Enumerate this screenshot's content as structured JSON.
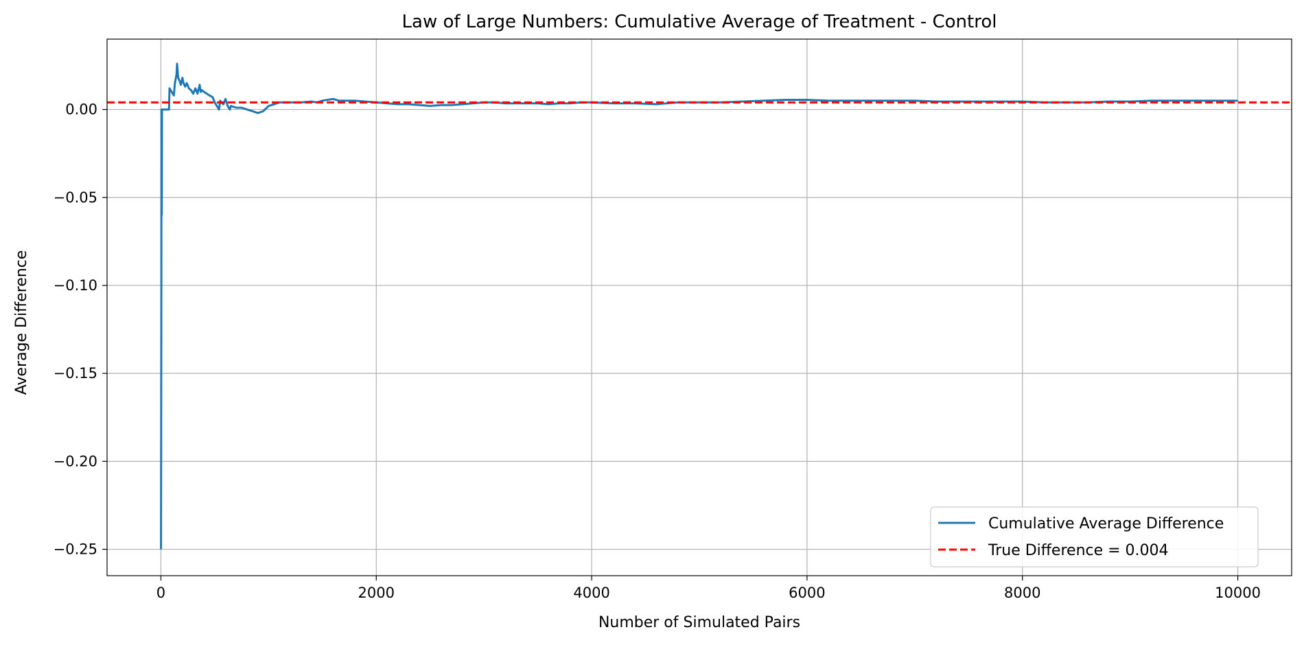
{
  "chart_data": {
    "type": "line",
    "title": "Law of Large Numbers: Cumulative Average of Treatment - Control",
    "xlabel": "Number of Simulated Pairs",
    "ylabel": "Average Difference",
    "xlim": [
      -500,
      10500
    ],
    "ylim": [
      -0.265,
      0.04
    ],
    "xticks": [
      0,
      2000,
      4000,
      6000,
      8000,
      10000
    ],
    "xtick_labels": [
      "0",
      "2000",
      "4000",
      "6000",
      "8000",
      "10000"
    ],
    "yticks": [
      0.0,
      -0.05,
      -0.1,
      -0.15,
      -0.2,
      -0.25
    ],
    "ytick_labels": [
      "0.00",
      "−0.05",
      "−0.10",
      "−0.15",
      "−0.20",
      "−0.25"
    ],
    "grid": true,
    "legend_position": "bottom-right",
    "series": [
      {
        "name": "Cumulative Average Difference",
        "color": "#1f77b4",
        "style": "solid",
        "x": [
          1,
          4,
          5,
          8,
          10,
          20,
          40,
          60,
          75,
          80,
          100,
          120,
          130,
          145,
          150,
          160,
          175,
          185,
          200,
          210,
          225,
          240,
          260,
          280,
          300,
          320,
          340,
          360,
          370,
          380,
          400,
          450,
          480,
          500,
          540,
          550,
          560,
          580,
          600,
          620,
          640,
          650,
          700,
          750,
          800,
          850,
          900,
          950,
          1000,
          1050,
          1100,
          1150,
          1200,
          1300,
          1400,
          1450,
          1500,
          1600,
          1650,
          1700,
          1800,
          1900,
          2000,
          2100,
          2200,
          2300,
          2400,
          2500,
          2600,
          2700,
          2800,
          2900,
          3000,
          3100,
          3200,
          3300,
          3400,
          3500,
          3600,
          3700,
          3800,
          3900,
          4000,
          4200,
          4400,
          4600,
          4800,
          5000,
          5200,
          5400,
          5600,
          5800,
          6000,
          6200,
          6400,
          6600,
          6800,
          7000,
          7200,
          7400,
          7600,
          7800,
          8000,
          8200,
          8400,
          8600,
          8800,
          9000,
          9200,
          9400,
          9600,
          9800,
          10000
        ],
        "y": [
          -0.25,
          -0.1,
          0.0,
          -0.06,
          0.0,
          0.0,
          0.0,
          0.0,
          0.0,
          0.012,
          0.01,
          0.008,
          0.015,
          0.02,
          0.026,
          0.018,
          0.016,
          0.014,
          0.018,
          0.015,
          0.013,
          0.015,
          0.012,
          0.011,
          0.009,
          0.012,
          0.009,
          0.014,
          0.01,
          0.011,
          0.01,
          0.008,
          0.007,
          0.004,
          0.0,
          0.005,
          0.004,
          0.003,
          0.006,
          0.002,
          0.0,
          0.002,
          0.001,
          0.001,
          0.0,
          -0.001,
          -0.002,
          -0.001,
          0.002,
          0.003,
          0.004,
          0.004,
          0.004,
          0.004,
          0.0045,
          0.004,
          0.005,
          0.006,
          0.005,
          0.005,
          0.005,
          0.0045,
          0.004,
          0.0035,
          0.003,
          0.003,
          0.0025,
          0.002,
          0.0025,
          0.0025,
          0.003,
          0.0035,
          0.004,
          0.004,
          0.0035,
          0.0035,
          0.0035,
          0.0035,
          0.003,
          0.0035,
          0.0035,
          0.004,
          0.004,
          0.0035,
          0.0035,
          0.003,
          0.004,
          0.004,
          0.004,
          0.0045,
          0.005,
          0.0055,
          0.0055,
          0.005,
          0.005,
          0.005,
          0.005,
          0.005,
          0.0045,
          0.0045,
          0.0045,
          0.0045,
          0.0045,
          0.004,
          0.004,
          0.004,
          0.0045,
          0.0045,
          0.005,
          0.005,
          0.005,
          0.005,
          0.005
        ]
      },
      {
        "name": "True Difference = 0.004",
        "color": "#ff0000",
        "style": "dashed",
        "hline": 0.004
      }
    ]
  }
}
